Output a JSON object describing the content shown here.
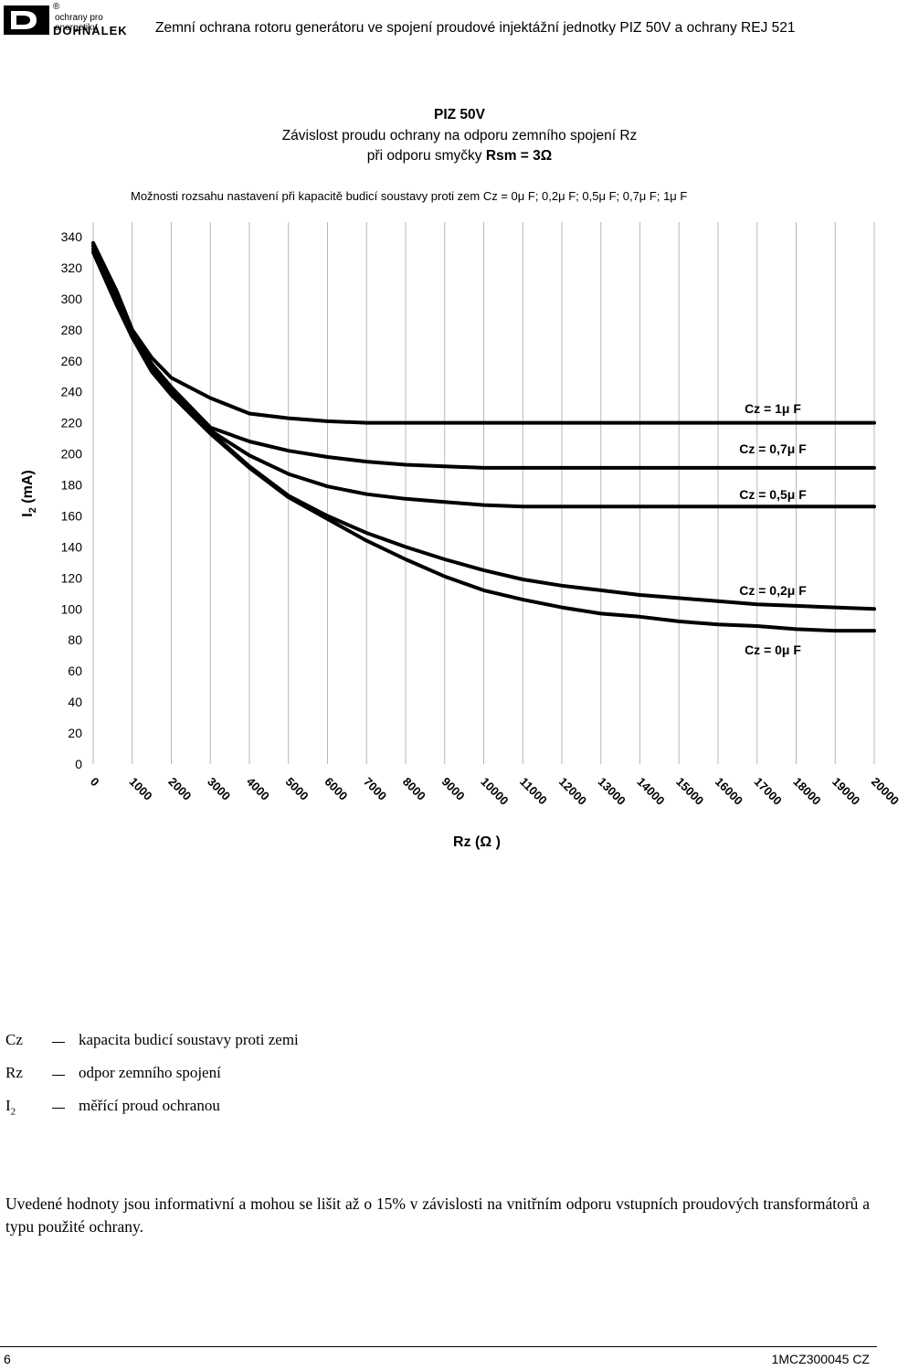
{
  "header": {
    "logo_reg": "®",
    "logo_tagline": "ochrany pro energetiku",
    "logo_brand": "DOHNÁLEK",
    "title": "Zemní ochrana rotoru generátoru ve spojení proudové injektážní jednotky PIZ 50V a ochrany REJ 521"
  },
  "chart_data": {
    "type": "line",
    "title_lines": [
      "PIZ 50V",
      "Závislost proudu ochrany na odporu zemního spojení Rz"
    ],
    "title_line3_prefix": "při odporu smyčky ",
    "title_line3_bold": "Rsm = 3Ω",
    "subtitle": "Možnosti rozsahu nastavení při kapacitě budicí soustavy proti zem Cz = 0μ F; 0,2μ F; 0,5μ F; 0,7μ F; 1μ F",
    "ylabel": "I",
    "ylabel_sub": "2",
    "ylabel_unit": " (mA)",
    "xlabel": "Rz (Ω )",
    "ylim": [
      0,
      340
    ],
    "xlim": [
      0,
      20000
    ],
    "y_ticks": [
      0,
      20,
      40,
      60,
      80,
      100,
      120,
      140,
      160,
      180,
      200,
      220,
      240,
      260,
      280,
      300,
      320,
      340
    ],
    "x_ticks": [
      0,
      1000,
      2000,
      3000,
      4000,
      5000,
      6000,
      7000,
      8000,
      9000,
      10000,
      11000,
      12000,
      13000,
      14000,
      15000,
      16000,
      17000,
      18000,
      19000,
      20000
    ],
    "grid_x": true,
    "grid_y": false,
    "series": [
      {
        "name": "Cz = 1μ F",
        "x": [
          0,
          600,
          1000,
          1500,
          2000,
          3000,
          4000,
          5000,
          6000,
          7000,
          8000,
          9000,
          10000,
          12000,
          14000,
          16000,
          18000,
          20000
        ],
        "y": [
          336,
          305,
          280,
          262,
          249,
          236,
          226,
          223,
          221,
          220,
          220,
          220,
          220,
          220,
          220,
          220,
          220,
          220
        ]
      },
      {
        "name": "Cz = 0,7μ F",
        "x": [
          0,
          600,
          1000,
          1500,
          2000,
          3000,
          4000,
          5000,
          6000,
          7000,
          8000,
          9000,
          10000,
          11000,
          12000,
          14000,
          16000,
          18000,
          20000
        ],
        "y": [
          336,
          302,
          278,
          258,
          243,
          217,
          208,
          202,
          198,
          195,
          193,
          192,
          191,
          191,
          191,
          191,
          191,
          191,
          191
        ]
      },
      {
        "name": "Cz = 0,5μ F",
        "x": [
          0,
          600,
          1000,
          1500,
          2000,
          3000,
          4000,
          5000,
          6000,
          7000,
          8000,
          9000,
          10000,
          11000,
          12000,
          14000,
          16000,
          18000,
          20000
        ],
        "y": [
          334,
          300,
          277,
          257,
          243,
          215,
          199,
          187,
          179,
          174,
          171,
          169,
          167,
          166,
          166,
          166,
          166,
          166,
          166
        ]
      },
      {
        "name": "Cz = 0,2μ F",
        "x": [
          0,
          600,
          1000,
          1500,
          2000,
          3000,
          4000,
          5000,
          6000,
          7000,
          8000,
          9000,
          10000,
          11000,
          12000,
          13000,
          14000,
          15000,
          16000,
          17000,
          18000,
          19000,
          20000
        ],
        "y": [
          332,
          298,
          275,
          255,
          240,
          214,
          192,
          173,
          160,
          149,
          140,
          132,
          125,
          119,
          115,
          112,
          109,
          107,
          105,
          103,
          102,
          101,
          100
        ]
      },
      {
        "name": "Cz = 0μ F",
        "x": [
          0,
          600,
          1000,
          1500,
          2000,
          3000,
          4000,
          5000,
          6000,
          7000,
          8000,
          9000,
          10000,
          11000,
          12000,
          13000,
          14000,
          15000,
          16000,
          17000,
          18000,
          19000,
          20000
        ],
        "y": [
          330,
          296,
          275,
          253,
          238,
          213,
          191,
          172,
          158,
          144,
          132,
          121,
          112,
          106,
          101,
          97,
          95,
          92,
          90,
          89,
          87,
          86,
          86
        ]
      }
    ]
  },
  "legend_defs": [
    {
      "symbol": "Cz",
      "sub": "",
      "text": "kapacita budicí soustavy proti zemi"
    },
    {
      "symbol": "Rz",
      "sub": "",
      "text": "odpor zemního spojení"
    },
    {
      "symbol": "I",
      "sub": "2",
      "text": "měřící proud ochranou"
    }
  ],
  "note": "Uvedené  hodnoty jsou  informativní a mohou se lišit až o 15% v závislosti na vnitřním odporu vstupních proudových transformátorů a typu použité ochrany.",
  "footer": {
    "page_number": "6",
    "doc_code": "1MCZ300045 CZ"
  }
}
